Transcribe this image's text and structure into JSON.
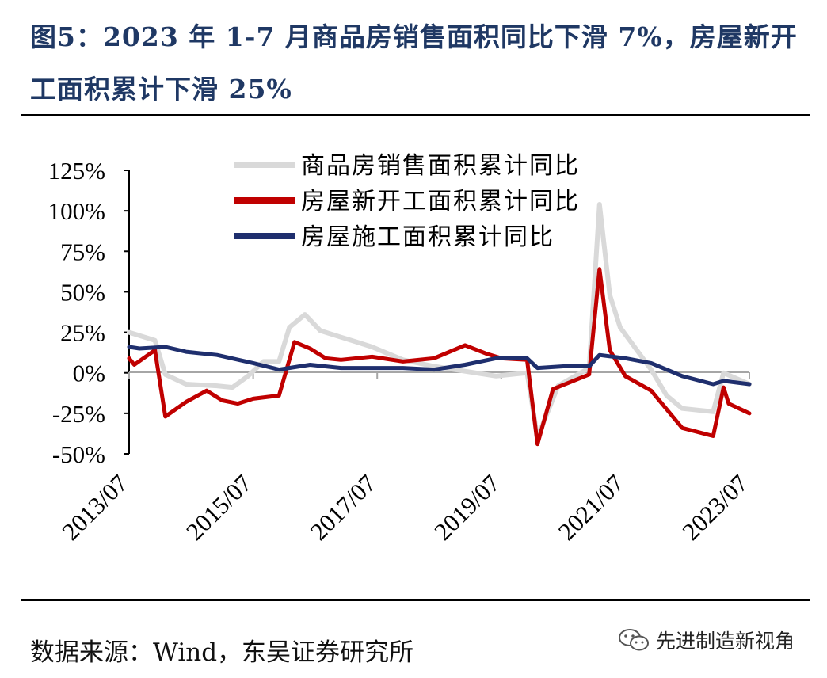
{
  "header": {
    "title": "图5：2023 年 1-7 月商品房销售面积同比下滑 7%，房屋新开工面积累计下滑 25%"
  },
  "footer": {
    "source": "数据来源：Wind，东吴证券研究所",
    "watermark": "先进制造新视角",
    "watermark_icon": "wechat-icon"
  },
  "chart_data": {
    "type": "line",
    "ylim": [
      -50,
      125
    ],
    "yticks": [
      "125%",
      "100%",
      "75%",
      "50%",
      "25%",
      "0%",
      "-25%",
      "-50%"
    ],
    "ytick_values": [
      125,
      100,
      75,
      50,
      25,
      0,
      -25,
      -50
    ],
    "xlim": [
      "2013/07",
      "2023/07"
    ],
    "xticks": [
      "2013/07",
      "2015/07",
      "2017/07",
      "2019/07",
      "2021/07",
      "2023/07"
    ],
    "legend_position": "top",
    "grid": false,
    "series": [
      {
        "name": "商品房销售面积累计同比",
        "color": "#d9d9d9",
        "points": [
          [
            "2013/07",
            25
          ],
          [
            "2013/12",
            20
          ],
          [
            "2014/02",
            -1
          ],
          [
            "2014/06",
            -7
          ],
          [
            "2014/12",
            -8
          ],
          [
            "2015/03",
            -9
          ],
          [
            "2015/06",
            -2
          ],
          [
            "2015/09",
            7
          ],
          [
            "2015/12",
            7
          ],
          [
            "2016/02",
            28
          ],
          [
            "2016/05",
            36
          ],
          [
            "2016/08",
            26
          ],
          [
            "2016/12",
            22
          ],
          [
            "2017/03",
            19
          ],
          [
            "2017/06",
            16
          ],
          [
            "2017/12",
            8
          ],
          [
            "2018/06",
            4
          ],
          [
            "2018/12",
            1
          ],
          [
            "2019/06",
            -2
          ],
          [
            "2019/12",
            0
          ],
          [
            "2020/02",
            -40
          ],
          [
            "2020/06",
            -8
          ],
          [
            "2020/12",
            3
          ],
          [
            "2021/02",
            104
          ],
          [
            "2021/04",
            48
          ],
          [
            "2021/06",
            28
          ],
          [
            "2021/12",
            2
          ],
          [
            "2022/03",
            -14
          ],
          [
            "2022/06",
            -22
          ],
          [
            "2022/12",
            -24
          ],
          [
            "2023/02",
            0
          ],
          [
            "2023/07",
            -7
          ]
        ]
      },
      {
        "name": "房屋新开工面积累计同比",
        "color": "#c00000",
        "points": [
          [
            "2013/07",
            9
          ],
          [
            "2013/08",
            5
          ],
          [
            "2013/12",
            14
          ],
          [
            "2014/02",
            -27
          ],
          [
            "2014/06",
            -18
          ],
          [
            "2014/10",
            -11
          ],
          [
            "2015/01",
            -17
          ],
          [
            "2015/04",
            -19
          ],
          [
            "2015/07",
            -16
          ],
          [
            "2015/12",
            -14
          ],
          [
            "2016/03",
            19
          ],
          [
            "2016/06",
            15
          ],
          [
            "2016/09",
            9
          ],
          [
            "2016/12",
            8
          ],
          [
            "2017/06",
            10
          ],
          [
            "2017/12",
            7
          ],
          [
            "2018/06",
            9
          ],
          [
            "2018/12",
            17
          ],
          [
            "2019/04",
            12
          ],
          [
            "2019/07",
            9
          ],
          [
            "2019/12",
            8
          ],
          [
            "2020/02",
            -44
          ],
          [
            "2020/05",
            -10
          ],
          [
            "2020/12",
            -1
          ],
          [
            "2021/02",
            64
          ],
          [
            "2021/04",
            14
          ],
          [
            "2021/07",
            -2
          ],
          [
            "2021/12",
            -11
          ],
          [
            "2022/06",
            -34
          ],
          [
            "2022/12",
            -39
          ],
          [
            "2023/02",
            -9
          ],
          [
            "2023/03",
            -19
          ],
          [
            "2023/07",
            -25
          ]
        ]
      },
      {
        "name": "房屋施工面积累计同比",
        "color": "#1f2f6e",
        "points": [
          [
            "2013/07",
            16
          ],
          [
            "2013/09",
            15
          ],
          [
            "2014/02",
            16
          ],
          [
            "2014/06",
            13
          ],
          [
            "2014/12",
            11
          ],
          [
            "2015/07",
            6
          ],
          [
            "2015/12",
            2
          ],
          [
            "2016/06",
            5
          ],
          [
            "2016/12",
            3
          ],
          [
            "2017/07",
            3
          ],
          [
            "2017/12",
            3
          ],
          [
            "2018/06",
            2
          ],
          [
            "2018/12",
            5
          ],
          [
            "2019/06",
            9
          ],
          [
            "2019/12",
            9
          ],
          [
            "2020/02",
            3
          ],
          [
            "2020/07",
            4
          ],
          [
            "2020/12",
            4
          ],
          [
            "2021/02",
            11
          ],
          [
            "2021/07",
            9
          ],
          [
            "2021/12",
            6
          ],
          [
            "2022/06",
            -2
          ],
          [
            "2022/12",
            -7
          ],
          [
            "2023/02",
            -5
          ],
          [
            "2023/07",
            -7
          ]
        ]
      }
    ]
  }
}
